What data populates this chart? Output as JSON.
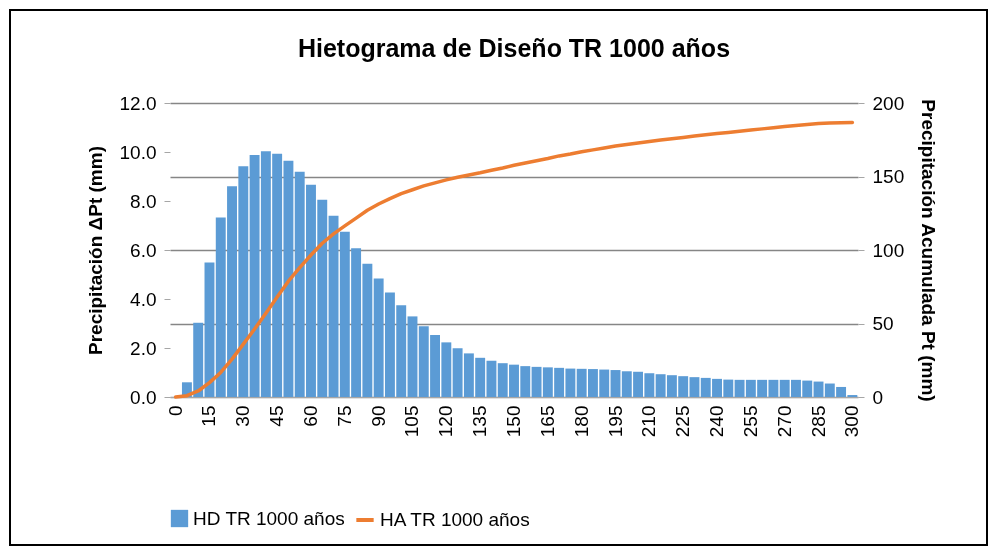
{
  "chart_data": {
    "type": "bar",
    "title": "Hietograma de Diseño TR 1000 años",
    "ylabel": "Precipitación ΔPt (mm)",
    "y2label": "Precipitación Acumulada Pt (mm)",
    "categories": [
      "0",
      null,
      null,
      "15",
      null,
      null,
      "30",
      null,
      null,
      "45",
      null,
      null,
      "60",
      null,
      null,
      "75",
      null,
      null,
      "90",
      null,
      null,
      "105",
      null,
      null,
      "120",
      null,
      null,
      "135",
      null,
      null,
      "150",
      null,
      null,
      "165",
      null,
      null,
      "180",
      null,
      null,
      "195",
      null,
      null,
      "210",
      null,
      null,
      "225",
      null,
      null,
      "240",
      null,
      null,
      "255",
      null,
      null,
      "270",
      null,
      null,
      "285",
      null,
      null,
      "300"
    ],
    "series": [
      {
        "name": "HD TR 1000 años",
        "color": "#5b9bd5",
        "values": [
          0,
          0.6,
          3.03,
          5.49,
          7.33,
          8.6,
          9.42,
          9.88,
          10.03,
          9.93,
          9.64,
          9.19,
          8.66,
          8.05,
          7.4,
          6.74,
          6.07,
          5.44,
          4.84,
          4.27,
          3.75,
          3.29,
          2.89,
          2.53,
          2.23,
          1.99,
          1.78,
          1.6,
          1.48,
          1.38,
          1.32,
          1.26,
          1.23,
          1.21,
          1.19,
          1.16,
          1.15,
          1.14,
          1.12,
          1.1,
          1.05,
          1.03,
          0.97,
          0.93,
          0.89,
          0.85,
          0.81,
          0.78,
          0.74,
          0.71,
          0.7,
          0.7,
          0.7,
          0.7,
          0.7,
          0.7,
          0.67,
          0.63,
          0.55,
          0.41,
          0.08
        ]
      },
      {
        "name": "HA TR 1000 años",
        "type": "line",
        "axis": "y2",
        "color": "#ed7d31",
        "values": [
          0,
          0.9,
          4.1,
          9.8,
          16.7,
          25.8,
          36,
          46.3,
          57,
          68,
          78.8,
          88,
          96.6,
          104.6,
          111,
          116.4,
          121.7,
          127,
          131.3,
          135,
          138.4,
          141,
          143.6,
          145.7,
          147.7,
          149.5,
          151,
          152.5,
          154.2,
          155.8,
          157.6,
          159.2,
          160.7,
          162.2,
          164,
          165.3,
          166.8,
          168.1,
          169.4,
          170.7,
          171.8,
          172.8,
          173.8,
          174.8,
          175.7,
          176.6,
          177.5,
          178.4,
          179.2,
          180,
          180.8,
          181.6,
          182.4,
          183.2,
          184,
          184.7,
          185.4,
          186,
          186.4,
          186.6,
          186.8
        ]
      }
    ],
    "ylim": [
      0,
      12
    ],
    "yticks": [
      {
        "value": 0,
        "label": "0.0"
      },
      {
        "value": 2,
        "label": "2.0"
      },
      {
        "value": 4,
        "label": "4.0"
      },
      {
        "value": 6,
        "label": "6.0"
      },
      {
        "value": 8,
        "label": "8.0"
      },
      {
        "value": 10,
        "label": "10.0"
      },
      {
        "value": 12,
        "label": "12.0"
      }
    ],
    "y2lim": [
      0,
      200
    ],
    "y2ticks": [
      0,
      50,
      100,
      150,
      200
    ],
    "grid": "y2",
    "legend": "bottom",
    "marker": "none",
    "line_style": "solid"
  }
}
